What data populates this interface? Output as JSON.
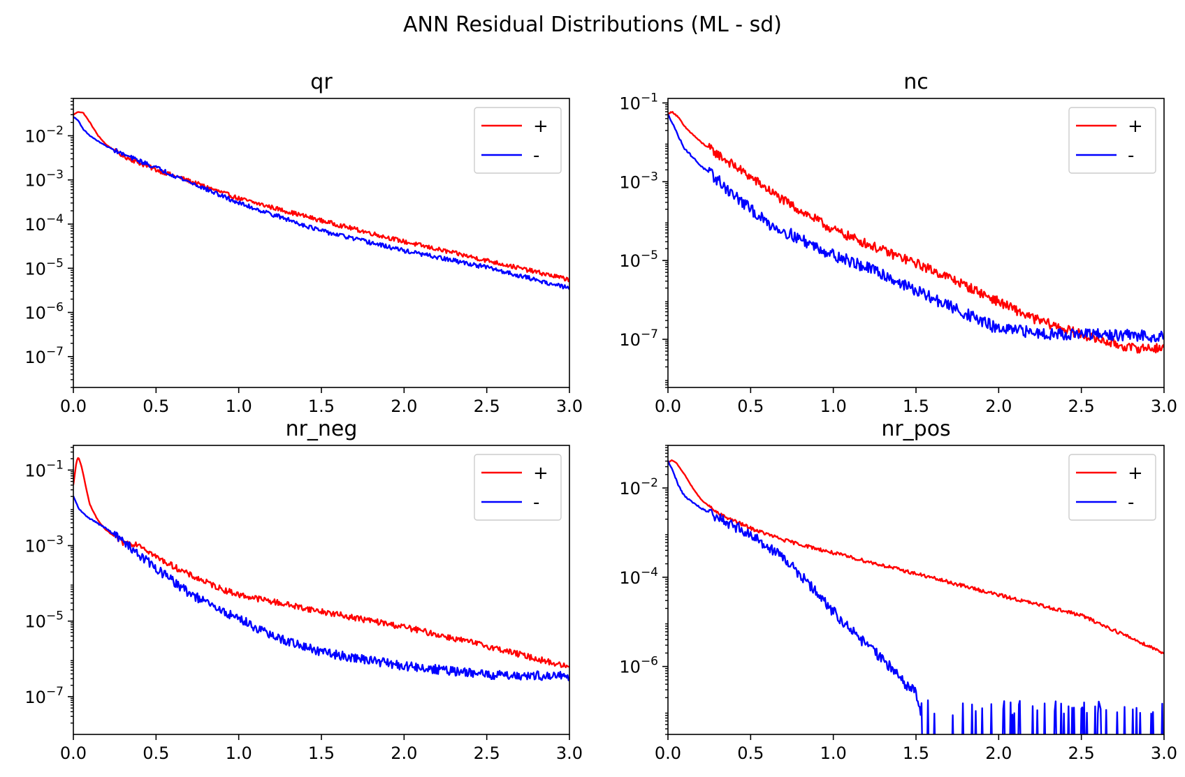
{
  "figure": {
    "title": "ANN Residual Distributions (ML - sd)"
  },
  "chart_data": [
    {
      "type": "line",
      "title": "qr",
      "xlabel": "",
      "ylabel": "",
      "yscale": "log",
      "xlim": [
        0,
        3
      ],
      "ylim": [
        2e-08,
        0.07
      ],
      "xticks": [
        "0.0",
        "0.5",
        "1.0",
        "1.5",
        "2.0",
        "2.5",
        "3.0"
      ],
      "yticks": [
        {
          "value": 0.01,
          "base": "10",
          "exp": "−2"
        },
        {
          "value": 0.001,
          "base": "10",
          "exp": "−3"
        },
        {
          "value": 0.0001,
          "base": "10",
          "exp": "−4"
        },
        {
          "value": 1e-05,
          "base": "10",
          "exp": "−5"
        },
        {
          "value": 1e-06,
          "base": "10",
          "exp": "−6"
        },
        {
          "value": 1e-07,
          "base": "10",
          "exp": "−7"
        }
      ],
      "legend": {
        "position": "upper-right"
      },
      "series": [
        {
          "name": "+",
          "color": "#ff0000",
          "noise": 0.05,
          "x": [
            0,
            0.03,
            0.06,
            0.1,
            0.15,
            0.2,
            0.3,
            0.4,
            0.5,
            0.7,
            1.0,
            1.5,
            2.0,
            2.5,
            3.0
          ],
          "y": [
            0.03,
            0.035,
            0.033,
            0.02,
            0.01,
            0.0062,
            0.0035,
            0.0024,
            0.0017,
            0.00095,
            0.00038,
            0.00012,
            4e-05,
            1.5e-05,
            5.5e-06
          ]
        },
        {
          "name": "-",
          "color": "#0000ff",
          "noise": 0.05,
          "x": [
            0,
            0.03,
            0.06,
            0.1,
            0.15,
            0.2,
            0.3,
            0.5,
            0.7,
            1.0,
            1.5,
            2.0,
            2.5,
            3.0
          ],
          "y": [
            0.027,
            0.022,
            0.014,
            0.01,
            0.0075,
            0.0058,
            0.0038,
            0.0019,
            0.0009,
            0.0003,
            7e-05,
            2.5e-05,
            1.05e-05,
            3.5e-06
          ]
        }
      ]
    },
    {
      "type": "line",
      "title": "nc",
      "xlabel": "",
      "ylabel": "",
      "yscale": "log",
      "xlim": [
        0,
        3
      ],
      "ylim": [
        6e-09,
        0.13
      ],
      "xticks": [
        "0.0",
        "0.5",
        "1.0",
        "1.5",
        "2.0",
        "2.5",
        "3.0"
      ],
      "yticks": [
        {
          "value": 0.1,
          "base": "10",
          "exp": "−1"
        },
        {
          "value": 0.001,
          "base": "10",
          "exp": "−3"
        },
        {
          "value": 1e-05,
          "base": "10",
          "exp": "−5"
        },
        {
          "value": 1e-07,
          "base": "10",
          "exp": "−7"
        }
      ],
      "legend": {
        "position": "upper-right"
      },
      "series": [
        {
          "name": "+",
          "color": "#ff0000",
          "noise": 0.12,
          "x": [
            0,
            0.03,
            0.06,
            0.1,
            0.2,
            0.3,
            0.5,
            0.7,
            1.0,
            1.3,
            1.5,
            1.7,
            2.0,
            2.2,
            2.4,
            2.6,
            2.8,
            3.0
          ],
          "y": [
            0.055,
            0.058,
            0.045,
            0.025,
            0.01,
            0.005,
            0.0013,
            0.00033,
            6e-05,
            1.8e-05,
            8.5e-06,
            3.7e-06,
            9e-07,
            3.5e-07,
            1.8e-07,
            1e-07,
            6e-08,
            6e-08
          ]
        },
        {
          "name": "-",
          "color": "#0000ff",
          "noise": 0.15,
          "x": [
            0,
            0.03,
            0.06,
            0.1,
            0.2,
            0.3,
            0.4,
            0.5,
            0.6,
            0.8,
            1.0,
            1.3,
            1.5,
            1.8,
            2.0,
            2.3,
            2.6,
            3.0
          ],
          "y": [
            0.05,
            0.03,
            0.015,
            0.007,
            0.0025,
            0.0011,
            0.00045,
            0.0002,
            9e-05,
            3.5e-05,
            1.4e-05,
            4.5e-06,
            1.7e-06,
            4.5e-07,
            1.8e-07,
            1.4e-07,
            1.3e-07,
            1.2e-07
          ]
        }
      ]
    },
    {
      "type": "line",
      "title": "nr_neg",
      "xlabel": "",
      "ylabel": "",
      "yscale": "log",
      "xlim": [
        0,
        3
      ],
      "ylim": [
        1e-08,
        0.45
      ],
      "xticks": [
        "0.0",
        "0.5",
        "1.0",
        "1.5",
        "2.0",
        "2.5",
        "3.0"
      ],
      "yticks": [
        {
          "value": 0.1,
          "base": "10",
          "exp": "−1"
        },
        {
          "value": 0.001,
          "base": "10",
          "exp": "−3"
        },
        {
          "value": 1e-05,
          "base": "10",
          "exp": "−5"
        },
        {
          "value": 1e-07,
          "base": "10",
          "exp": "−7"
        }
      ],
      "legend": {
        "position": "upper-right"
      },
      "series": [
        {
          "name": "+",
          "color": "#ff0000",
          "noise": 0.08,
          "x": [
            0,
            0.02,
            0.03,
            0.05,
            0.08,
            0.1,
            0.15,
            0.2,
            0.3,
            0.4,
            0.5,
            0.7,
            0.9,
            1.0,
            1.5,
            2.0,
            2.5,
            3.0
          ],
          "y": [
            0.04,
            0.18,
            0.22,
            0.12,
            0.03,
            0.012,
            0.0045,
            0.0025,
            0.0012,
            0.0011,
            0.0005,
            0.00017,
            7e-05,
            5e-05,
            1.8e-05,
            7e-06,
            2.2e-06,
            6e-07
          ]
        },
        {
          "name": "-",
          "color": "#0000ff",
          "noise": 0.12,
          "x": [
            0,
            0.03,
            0.06,
            0.1,
            0.2,
            0.3,
            0.5,
            0.7,
            0.9,
            1.0,
            1.2,
            1.5,
            2.0,
            2.5,
            3.0
          ],
          "y": [
            0.02,
            0.01,
            0.007,
            0.0052,
            0.0028,
            0.0013,
            0.00025,
            5.5e-05,
            1.8e-05,
            1.2e-05,
            4e-06,
            1.5e-06,
            6.5e-07,
            3.8e-07,
            3.5e-07
          ]
        }
      ]
    },
    {
      "type": "line",
      "title": "nr_pos",
      "xlabel": "",
      "ylabel": "",
      "yscale": "log",
      "xlim": [
        0,
        3
      ],
      "ylim": [
        3e-08,
        0.09
      ],
      "xticks": [
        "0.0",
        "0.5",
        "1.0",
        "1.5",
        "2.0",
        "2.5",
        "3.0"
      ],
      "yticks": [
        {
          "value": 0.01,
          "base": "10",
          "exp": "−2"
        },
        {
          "value": 0.0001,
          "base": "10",
          "exp": "−4"
        },
        {
          "value": 1e-06,
          "base": "10",
          "exp": "−6"
        }
      ],
      "legend": {
        "position": "upper-right"
      },
      "series": [
        {
          "name": "+",
          "color": "#ff0000",
          "noise": 0.04,
          "x": [
            0,
            0.02,
            0.05,
            0.1,
            0.15,
            0.2,
            0.3,
            0.5,
            0.7,
            1.0,
            1.5,
            2.0,
            2.5,
            3.0
          ],
          "y": [
            0.035,
            0.042,
            0.037,
            0.02,
            0.01,
            0.0055,
            0.0027,
            0.00125,
            0.00068,
            0.00035,
            0.00012,
            4e-05,
            1.4e-05,
            2e-06
          ]
        },
        {
          "name": "-",
          "color": "#0000ff",
          "noise": 0.12,
          "floor": 3.5e-08,
          "x": [
            0,
            0.03,
            0.06,
            0.1,
            0.2,
            0.3,
            0.5,
            0.7,
            0.8,
            0.9,
            1.0,
            1.1,
            1.2,
            1.3,
            1.4,
            1.5,
            1.55,
            3.0
          ],
          "y": [
            0.04,
            0.025,
            0.012,
            0.0065,
            0.0035,
            0.0022,
            0.0009,
            0.00028,
            0.00011,
            4.5e-05,
            1.7e-05,
            7e-06,
            3e-06,
            1.5e-06,
            5.5e-07,
            2.5e-07,
            3e-08,
            3e-08
          ]
        }
      ]
    }
  ]
}
